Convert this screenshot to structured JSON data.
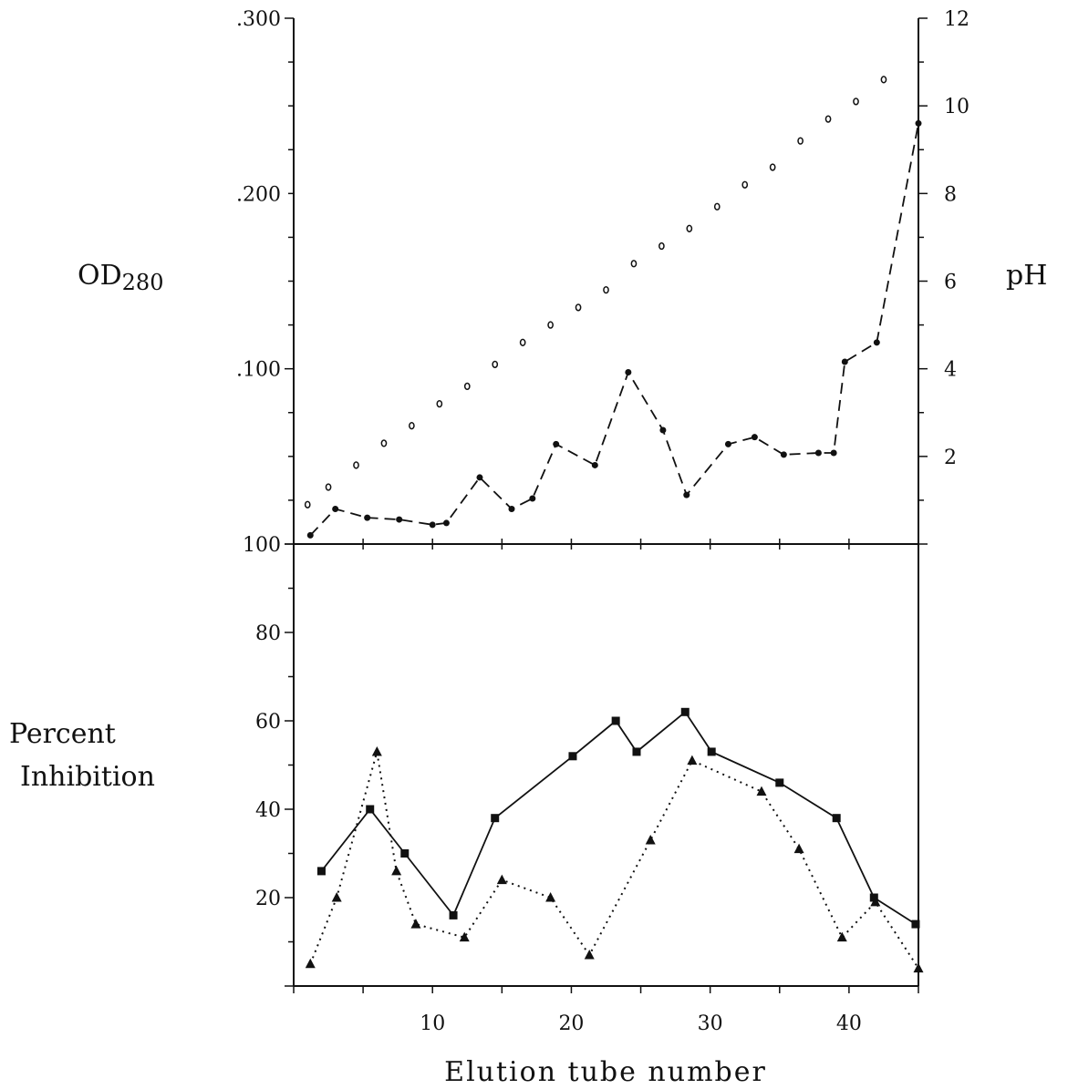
{
  "chart_data": [
    {
      "type": "line",
      "panel": "top",
      "xlabel": "Elution tube number",
      "ylabel_left": "OD280",
      "ylabel_left_main": "OD",
      "ylabel_left_sub": "280",
      "ylabel_right": "pH",
      "xlim": [
        0,
        45
      ],
      "ylim_left": [
        0,
        0.3
      ],
      "ylim_right": [
        0,
        12
      ],
      "yticks_left": [
        {
          "value": 0.3,
          "label": ".300"
        },
        {
          "value": 0.2,
          "label": ".200"
        },
        {
          "value": 0.1,
          "label": ".100"
        }
      ],
      "yticks_right": [
        {
          "value": 12,
          "label": "12"
        },
        {
          "value": 10,
          "label": "10"
        },
        {
          "value": 8,
          "label": "8"
        },
        {
          "value": 6,
          "label": "6"
        },
        {
          "value": 4,
          "label": "4"
        },
        {
          "value": 2,
          "label": "2"
        }
      ],
      "grid": false,
      "series": [
        {
          "axis": "left",
          "style": "dashed",
          "marker": "dot",
          "x": [
            1.2,
            3,
            5.3,
            7.6,
            10,
            11,
            13.4,
            15.7,
            17.2,
            18.9,
            21.7,
            24.1,
            26.6,
            28.3,
            31.3,
            33.2,
            35.3,
            37.8,
            38.9,
            39.7,
            42,
            45
          ],
          "values": [
            0.005,
            0.02,
            0.015,
            0.014,
            0.011,
            0.012,
            0.038,
            0.02,
            0.026,
            0.057,
            0.045,
            0.098,
            0.065,
            0.028,
            0.057,
            0.061,
            0.051,
            0.052,
            0.052,
            0.104,
            0.115,
            0.24
          ]
        },
        {
          "axis": "right",
          "style": "none",
          "marker": "open-circle",
          "x": [
            1,
            2.5,
            4.5,
            6.5,
            8.5,
            10.5,
            12.5,
            14.5,
            16.5,
            18.5,
            20.5,
            22.5,
            24.5,
            26.5,
            28.5,
            30.5,
            32.5,
            34.5,
            36.5,
            38.5,
            40.5,
            42.5
          ],
          "values": [
            0.9,
            1.3,
            1.8,
            2.3,
            2.7,
            3.2,
            3.6,
            4.1,
            4.6,
            5.0,
            5.4,
            5.8,
            6.4,
            6.8,
            7.2,
            7.7,
            8.2,
            8.6,
            9.2,
            9.7,
            10.1,
            10.6
          ]
        }
      ]
    },
    {
      "type": "line",
      "panel": "bottom",
      "xlabel": "Elution tube number",
      "ylabel": "Percent Inhibition",
      "ylabel_line1": "Percent",
      "ylabel_line2": "Inhibition",
      "xlim": [
        0,
        45
      ],
      "ylim": [
        0,
        100
      ],
      "xticks": [
        {
          "value": 10,
          "label": "10"
        },
        {
          "value": 20,
          "label": "20"
        },
        {
          "value": 30,
          "label": "30"
        },
        {
          "value": 40,
          "label": "40"
        }
      ],
      "yticks": [
        {
          "value": 100,
          "label": "100"
        },
        {
          "value": 80,
          "label": "80"
        },
        {
          "value": 60,
          "label": "60"
        },
        {
          "value": 40,
          "label": "40"
        },
        {
          "value": 20,
          "label": "20"
        }
      ],
      "grid": false,
      "series": [
        {
          "style": "solid",
          "marker": "square",
          "x": [
            2,
            5.5,
            8,
            11.5,
            14.5,
            20.1,
            23.2,
            24.7,
            28.2,
            30.1,
            35,
            39.1,
            41.8,
            44.8
          ],
          "values": [
            26,
            40,
            30,
            16,
            38,
            52,
            60,
            53,
            62,
            53,
            46,
            38,
            20,
            14
          ]
        },
        {
          "style": "dotted",
          "marker": "triangle",
          "x": [
            1.2,
            3.1,
            6,
            7.4,
            8.8,
            12.3,
            15,
            18.5,
            21.3,
            25.7,
            28.7,
            33.7,
            36.4,
            39.5,
            41.9,
            45
          ],
          "values": [
            5,
            20,
            53,
            26,
            14,
            11,
            24,
            20,
            7,
            33,
            51,
            44,
            31,
            11,
            19,
            4
          ]
        }
      ]
    }
  ]
}
